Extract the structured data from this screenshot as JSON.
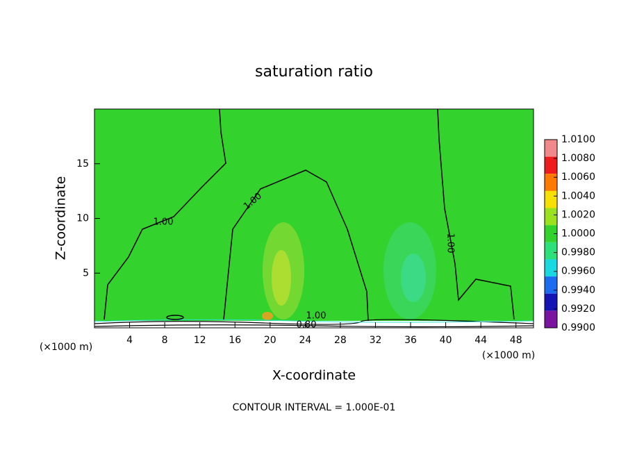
{
  "chart_data": {
    "type": "contour",
    "title": "saturation ratio",
    "xlabel": "X-coordinate",
    "ylabel": "Z-coordinate",
    "x_unit": "(×1000 m)",
    "x_unit_right": "(×1000 m)",
    "footer": "CONTOUR INTERVAL = 1.000E-01",
    "xlim": [
      0,
      50
    ],
    "ylim": [
      0,
      20
    ],
    "xticks": [
      4,
      8,
      12,
      16,
      20,
      24,
      28,
      32,
      36,
      40,
      44,
      48
    ],
    "yticks": [
      5,
      10,
      15
    ],
    "background_color": "#33d22c",
    "contour_labels": [
      "1.00",
      "1.00",
      "1.00",
      "1.00",
      "0.80"
    ],
    "colorbar": {
      "ticks": [
        {
          "value": 1.01,
          "label": "1.0100"
        },
        {
          "value": 1.008,
          "label": "1.0080"
        },
        {
          "value": 1.006,
          "label": "1.0060"
        },
        {
          "value": 1.004,
          "label": "1.0040"
        },
        {
          "value": 1.002,
          "label": "1.0020"
        },
        {
          "value": 1.0,
          "label": "1.0000"
        },
        {
          "value": 0.998,
          "label": "0.9980"
        },
        {
          "value": 0.996,
          "label": "0.9960"
        },
        {
          "value": 0.994,
          "label": "0.9940"
        },
        {
          "value": 0.992,
          "label": "0.9920"
        },
        {
          "value": 0.99,
          "label": "0.9900"
        }
      ],
      "colors": [
        "#f08a8a",
        "#ee1c1c",
        "#ff7a00",
        "#f5e000",
        "#9be21e",
        "#33d22c",
        "#2ee07a",
        "#18d8e0",
        "#1c6cf0",
        "#1414b4",
        "#7a14a0"
      ]
    }
  }
}
